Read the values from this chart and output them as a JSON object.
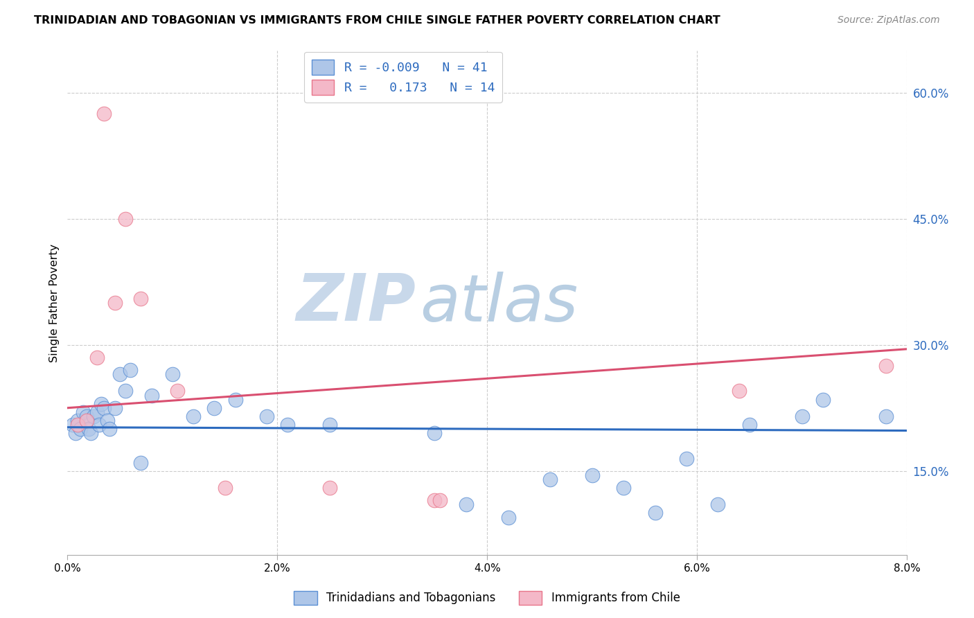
{
  "title": "TRINIDADIAN AND TOBAGONIAN VS IMMIGRANTS FROM CHILE SINGLE FATHER POVERTY CORRELATION CHART",
  "source": "Source: ZipAtlas.com",
  "ylabel": "Single Father Poverty",
  "legend_bottom": [
    "Trinidadians and Tobagonians",
    "Immigrants from Chile"
  ],
  "R_blue": -0.009,
  "N_blue": 41,
  "R_pink": 0.173,
  "N_pink": 14,
  "xlim": [
    0.0,
    8.0
  ],
  "ylim": [
    5.0,
    65.0
  ],
  "yticks": [
    15.0,
    30.0,
    45.0,
    60.0
  ],
  "xticks": [
    0.0,
    2.0,
    4.0,
    6.0,
    8.0
  ],
  "blue_color": "#aec6e8",
  "pink_color": "#f4b8c8",
  "blue_edge_color": "#5b8fd4",
  "pink_edge_color": "#e8758a",
  "blue_line_color": "#2d6bbf",
  "pink_line_color": "#d94f70",
  "watermark_zip": "ZIP",
  "watermark_atlas": "atlas",
  "watermark_color_zip": "#c8d8ea",
  "watermark_color_atlas": "#b8cee2",
  "legend_text_color": "#2d6bbf",
  "blue_points_x": [
    0.05,
    0.08,
    0.1,
    0.12,
    0.15,
    0.18,
    0.2,
    0.22,
    0.25,
    0.28,
    0.3,
    0.32,
    0.35,
    0.38,
    0.4,
    0.45,
    0.5,
    0.55,
    0.6,
    0.7,
    0.8,
    1.0,
    1.2,
    1.4,
    1.6,
    1.9,
    2.1,
    2.5,
    3.5,
    3.8,
    4.2,
    4.6,
    5.0,
    5.3,
    5.6,
    5.9,
    6.2,
    6.5,
    7.0,
    7.2,
    7.8
  ],
  "blue_points_y": [
    20.5,
    19.5,
    21.0,
    20.0,
    22.0,
    21.5,
    20.0,
    19.5,
    21.5,
    22.0,
    20.5,
    23.0,
    22.5,
    21.0,
    20.0,
    22.5,
    26.5,
    24.5,
    27.0,
    16.0,
    24.0,
    26.5,
    21.5,
    22.5,
    23.5,
    21.5,
    20.5,
    20.5,
    19.5,
    11.0,
    9.5,
    14.0,
    14.5,
    13.0,
    10.0,
    16.5,
    11.0,
    20.5,
    21.5,
    23.5,
    21.5
  ],
  "pink_points_x": [
    0.1,
    0.18,
    0.28,
    0.35,
    0.45,
    0.55,
    0.7,
    1.05,
    1.5,
    2.5,
    3.5,
    3.55,
    6.4,
    7.8
  ],
  "pink_points_y": [
    20.5,
    21.0,
    28.5,
    57.5,
    35.0,
    45.0,
    35.5,
    24.5,
    13.0,
    13.0,
    11.5,
    11.5,
    24.5,
    27.5
  ],
  "blue_trend_x": [
    0.0,
    8.0
  ],
  "blue_trend_y": [
    20.2,
    19.8
  ],
  "pink_trend_x": [
    0.0,
    8.0
  ],
  "pink_trend_y": [
    22.5,
    29.5
  ]
}
